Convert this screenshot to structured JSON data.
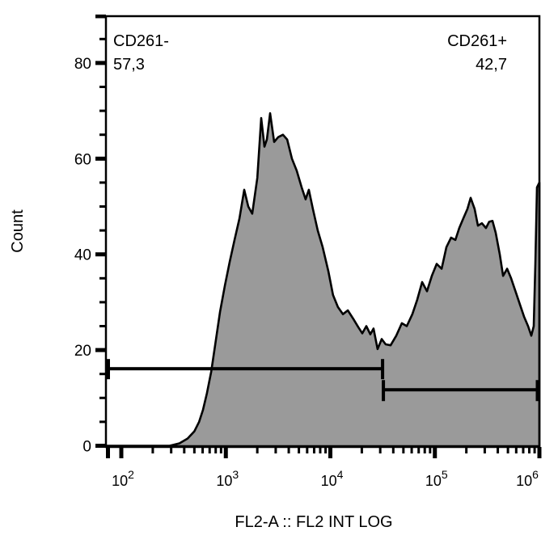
{
  "figure": {
    "background": "#ffffff",
    "histogram_fill": "#9a9a9a",
    "line_color": "#000000"
  },
  "labels": {
    "ylabel": "Count",
    "xlabel": "FL2-A :: FL2 INT LOG"
  },
  "gates": [
    {
      "name": "CD261-",
      "percent": "57,3",
      "x_from": 71,
      "x_to": 31600,
      "count_level": 16.1
    },
    {
      "name": "CD261+",
      "percent": "42,7",
      "x_from": 31600,
      "x_to": 1000000,
      "count_level": 11.7
    }
  ],
  "chart_data": {
    "type": "area",
    "title": "",
    "xlabel": "FL2-A :: FL2 INT LOG",
    "ylabel": "Count",
    "x_scale": "log10",
    "x_range": [
      71,
      1000000
    ],
    "y_range": [
      0,
      90
    ],
    "x_tick_exponents": [
      2,
      3,
      4,
      5,
      6
    ],
    "y_ticks": [
      0,
      20,
      40,
      60,
      80
    ],
    "y_minor_step": 5,
    "grid": false,
    "legend": "none",
    "points": [
      [
        71,
        0
      ],
      [
        290,
        0
      ],
      [
        360,
        0.5
      ],
      [
        430,
        1.5
      ],
      [
        500,
        3
      ],
      [
        555,
        5
      ],
      [
        605,
        7.5
      ],
      [
        660,
        11
      ],
      [
        725,
        15.5
      ],
      [
        790,
        21
      ],
      [
        880,
        28
      ],
      [
        980,
        33.5
      ],
      [
        1090,
        38.5
      ],
      [
        1210,
        43
      ],
      [
        1350,
        47.5
      ],
      [
        1500,
        53.5
      ],
      [
        1640,
        50
      ],
      [
        1790,
        48.5
      ],
      [
        2000,
        56
      ],
      [
        2180,
        68.5
      ],
      [
        2340,
        62.5
      ],
      [
        2470,
        64
      ],
      [
        2650,
        69.5
      ],
      [
        2900,
        63.5
      ],
      [
        3170,
        64.5
      ],
      [
        3520,
        65
      ],
      [
        3860,
        64
      ],
      [
        4290,
        60
      ],
      [
        4770,
        57.5
      ],
      [
        5310,
        54
      ],
      [
        5800,
        51.5
      ],
      [
        6230,
        53.5
      ],
      [
        6810,
        49.5
      ],
      [
        7580,
        45
      ],
      [
        8440,
        41.5
      ],
      [
        9560,
        36.5
      ],
      [
        10600,
        31.5
      ],
      [
        11800,
        29
      ],
      [
        13200,
        27.5
      ],
      [
        14700,
        28.3
      ],
      [
        16600,
        26.5
      ],
      [
        18500,
        24.8
      ],
      [
        20200,
        23.5
      ],
      [
        22100,
        25
      ],
      [
        24100,
        23.3
      ],
      [
        25900,
        24.5
      ],
      [
        28300,
        20.2
      ],
      [
        31000,
        22.3
      ],
      [
        33800,
        21.2
      ],
      [
        37700,
        21
      ],
      [
        42700,
        23
      ],
      [
        48300,
        25.6
      ],
      [
        53800,
        25
      ],
      [
        60900,
        27.5
      ],
      [
        67800,
        30.5
      ],
      [
        75500,
        34.2
      ],
      [
        84000,
        32.3
      ],
      [
        93500,
        35.5
      ],
      [
        104000,
        38
      ],
      [
        116000,
        37
      ],
      [
        129000,
        41.5
      ],
      [
        143000,
        43.5
      ],
      [
        157000,
        43
      ],
      [
        171000,
        45.5
      ],
      [
        187000,
        47.5
      ],
      [
        205000,
        49.5
      ],
      [
        220000,
        51.8
      ],
      [
        240000,
        49.5
      ],
      [
        258000,
        46
      ],
      [
        282000,
        46.5
      ],
      [
        308000,
        45.5
      ],
      [
        331000,
        46.8
      ],
      [
        356000,
        47
      ],
      [
        382000,
        44.5
      ],
      [
        418000,
        40
      ],
      [
        449000,
        35.5
      ],
      [
        491000,
        37
      ],
      [
        536000,
        35
      ],
      [
        597000,
        32
      ],
      [
        652000,
        29.5
      ],
      [
        713000,
        27
      ],
      [
        779000,
        25
      ],
      [
        837000,
        23
      ],
      [
        883000,
        25
      ],
      [
        915000,
        38
      ],
      [
        948000,
        54
      ],
      [
        1000000,
        55
      ]
    ]
  }
}
